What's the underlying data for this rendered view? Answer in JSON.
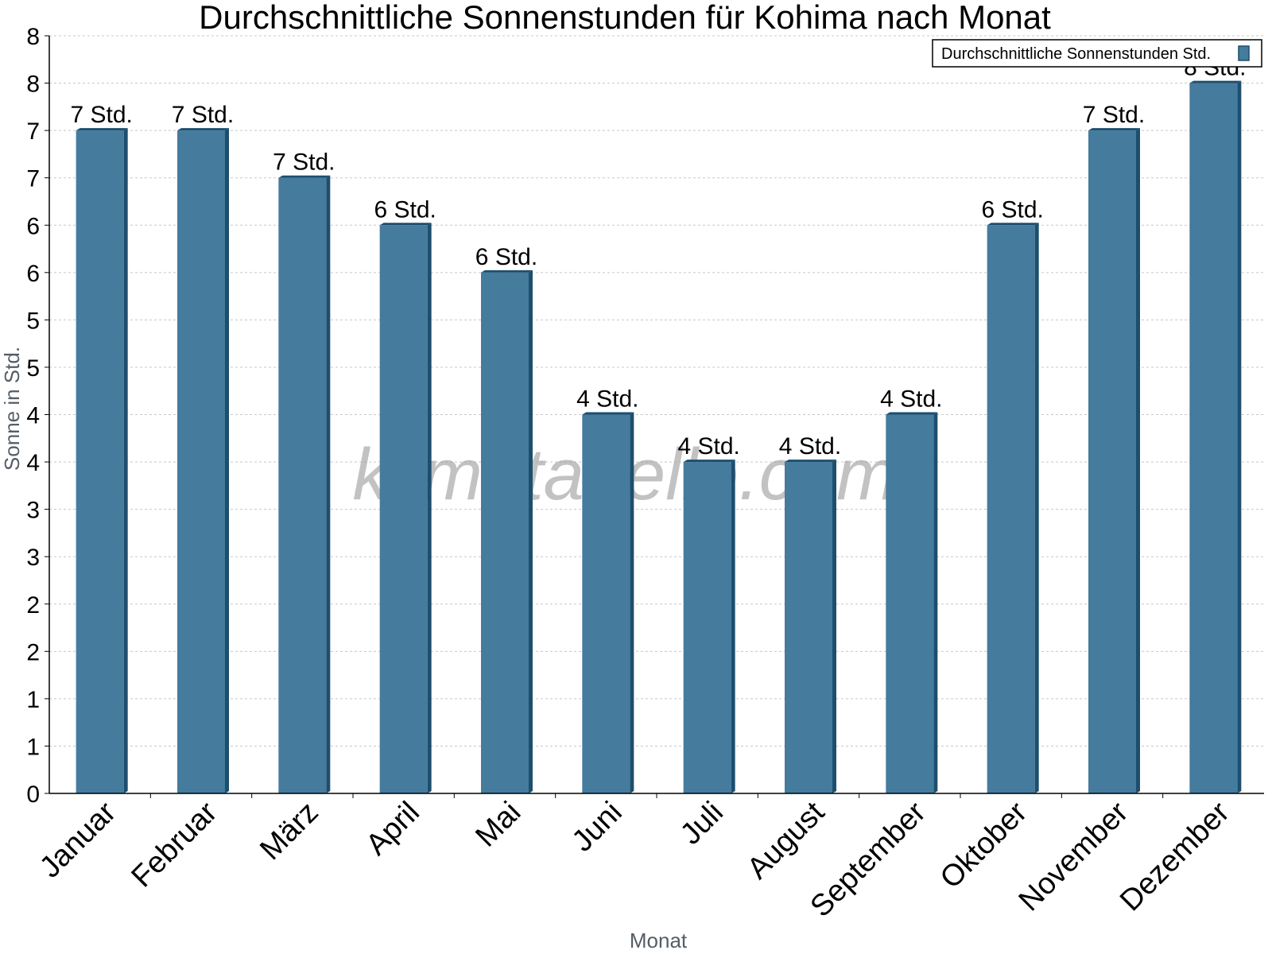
{
  "chart_data": {
    "type": "bar",
    "title": "Durchschnittliche Sonnenstunden für Kohima nach Monat",
    "xlabel": "Monat",
    "ylabel": "Sonne in Std.",
    "categories": [
      "Januar",
      "Februar",
      "März",
      "April",
      "Mai",
      "Juni",
      "Juli",
      "August",
      "September",
      "Oktober",
      "November",
      "Dezember"
    ],
    "series": [
      {
        "name": "Durchschnittliche Sonnenstunden Std.",
        "values": [
          7.0,
          7.0,
          6.5,
          6.0,
          5.5,
          4.0,
          3.5,
          3.5,
          4.0,
          6.0,
          7.0,
          7.5
        ],
        "data_labels": [
          "7 Std.",
          "7 Std.",
          "7 Std.",
          "6 Std.",
          "6 Std.",
          "4 Std.",
          "4 Std.",
          "4 Std.",
          "4 Std.",
          "6 Std.",
          "7 Std.",
          "8 Std."
        ],
        "color": "#457b9d",
        "edge_color": "#1d4e6e"
      }
    ],
    "ylim": [
      0,
      8
    ],
    "yticks": [
      0,
      0.5,
      1,
      1.5,
      2,
      2.5,
      3,
      3.5,
      4,
      4.5,
      5,
      5.5,
      6,
      6.5,
      7,
      7.5,
      8
    ],
    "ytick_labels": [
      "0",
      "1",
      "1",
      "2",
      "2",
      "3",
      "3",
      "4",
      "4",
      "5",
      "5",
      "6",
      "6",
      "7",
      "7",
      "8",
      "8"
    ],
    "grid": true,
    "legend_position": "top-right",
    "watermark": "klimatabelle.com"
  }
}
